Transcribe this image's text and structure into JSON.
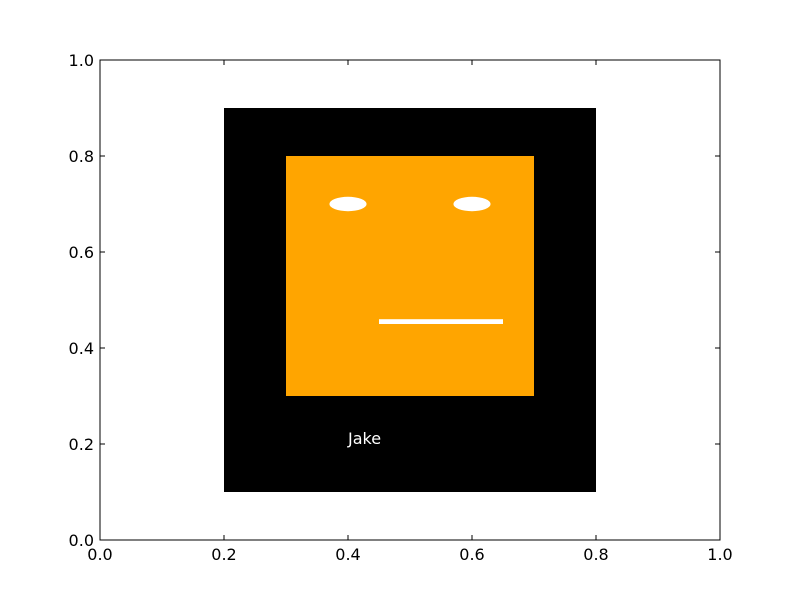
{
  "chart_data": {
    "type": "shapes",
    "title": "",
    "xlabel": "",
    "ylabel": "",
    "xlim": [
      0.0,
      1.0
    ],
    "ylim": [
      0.0,
      1.0
    ],
    "x_ticks": [
      "0.0",
      "0.2",
      "0.4",
      "0.6",
      "0.8",
      "1.0"
    ],
    "y_ticks": [
      "0.0",
      "0.2",
      "0.4",
      "0.6",
      "0.8",
      "1.0"
    ],
    "grid": false,
    "legend": "none",
    "shapes": {
      "outer_frame": {
        "x0": 0.2,
        "y0": 0.1,
        "x1": 0.8,
        "y1": 0.9,
        "color": "#000000"
      },
      "face": {
        "x0": 0.3,
        "y0": 0.3,
        "x1": 0.7,
        "y1": 0.8,
        "color": "#ffa500"
      },
      "left_eye": {
        "cx": 0.4,
        "cy": 0.7,
        "w": 0.06,
        "h": 0.06,
        "color": "#ffffff"
      },
      "right_eye": {
        "cx": 0.6,
        "cy": 0.7,
        "w": 0.06,
        "h": 0.06,
        "color": "#ffffff"
      },
      "mouth": {
        "x0": 0.45,
        "y0": 0.45,
        "x1": 0.65,
        "y1": 0.46,
        "color": "#ffffff"
      }
    },
    "annotation": {
      "text": "Jake",
      "x": 0.4,
      "y": 0.2,
      "color": "#ffffff"
    }
  }
}
